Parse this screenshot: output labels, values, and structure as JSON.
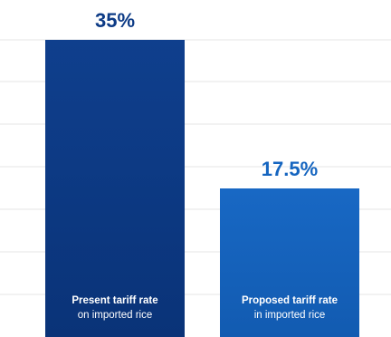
{
  "chart_data": {
    "type": "bar",
    "title": "",
    "xlabel": "",
    "ylabel": "",
    "ylim": [
      0,
      35
    ],
    "grid": true,
    "categories": [
      {
        "line1": "Present tariff rate",
        "line2": "on imported rice"
      },
      {
        "line1": "Proposed tariff rate",
        "line2": "in imported rice"
      }
    ],
    "values": [
      35,
      17.5
    ],
    "data_labels": [
      "35%",
      "17.5%"
    ],
    "colors": {
      "bars": [
        "#0d3b86",
        "#1565c0"
      ],
      "data_labels": [
        "#0d3b86",
        "#1565c0"
      ],
      "grid": "#e4e4e4",
      "category_text": "#ffffff"
    }
  }
}
